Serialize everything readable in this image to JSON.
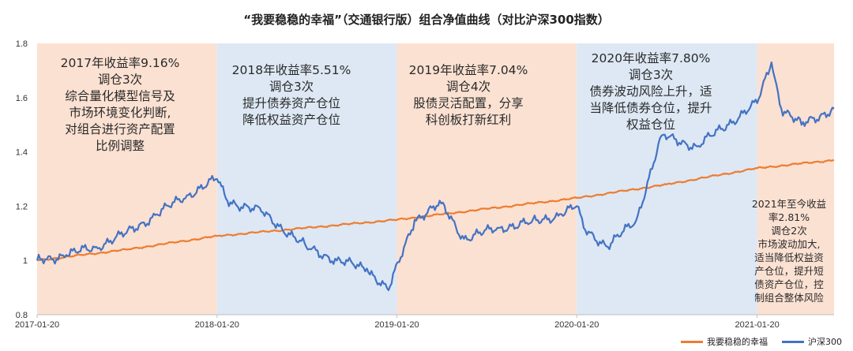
{
  "chart_data": {
    "type": "line",
    "title": "“我要稳稳的幸福”（交通银行版）组合净值曲线（对比沪深300指数）",
    "x_ticks": [
      "2017-01-20",
      "2018-01-20",
      "2019-01-20",
      "2020-01-20",
      "2021-01-20"
    ],
    "y_ticks": [
      0.8,
      1,
      1.2,
      1.4,
      1.6,
      1.8
    ],
    "ylim": [
      0.8,
      1.8
    ],
    "xlim": [
      "2017-01-20",
      "2021-06-25"
    ],
    "grid": false,
    "legend_position": "bottom-right",
    "colors": {
      "portfolio": "#ED7D31",
      "index": "#4472C4",
      "band_orange": "#FBE1D2",
      "band_blue": "#DDE8F4"
    },
    "series": [
      {
        "name": "我要稳稳的幸福",
        "x": [
          "2017-01-20",
          "2017-07-20",
          "2018-01-20",
          "2018-07-20",
          "2019-01-20",
          "2019-07-20",
          "2020-01-20",
          "2020-07-20",
          "2021-01-20",
          "2021-06-25"
        ],
        "values": [
          1.0,
          1.04,
          1.09,
          1.12,
          1.15,
          1.19,
          1.23,
          1.28,
          1.34,
          1.37
        ]
      },
      {
        "name": "沪深300",
        "x": [
          "2017-01-20",
          "2017-03-20",
          "2017-05-20",
          "2017-07-20",
          "2017-09-20",
          "2017-11-20",
          "2018-01-20",
          "2018-02-10",
          "2018-04-20",
          "2018-07-20",
          "2018-09-20",
          "2018-11-20",
          "2019-01-03",
          "2019-02-25",
          "2019-04-20",
          "2019-06-05",
          "2019-08-15",
          "2019-10-20",
          "2019-12-20",
          "2020-01-20",
          "2020-02-03",
          "2020-03-23",
          "2020-05-20",
          "2020-07-10",
          "2020-09-20",
          "2020-11-20",
          "2021-01-20",
          "2021-02-18",
          "2021-03-10",
          "2021-04-20",
          "2021-06-25"
        ],
        "values": [
          1.0,
          1.02,
          1.05,
          1.1,
          1.17,
          1.24,
          1.3,
          1.22,
          1.18,
          1.05,
          1.0,
          0.97,
          0.89,
          1.15,
          1.21,
          1.08,
          1.12,
          1.14,
          1.17,
          1.2,
          1.12,
          1.05,
          1.15,
          1.46,
          1.42,
          1.5,
          1.58,
          1.73,
          1.56,
          1.5,
          1.56
        ]
      }
    ],
    "annotations": [
      {
        "lines": [
          "2017年收益率9.16%",
          "调仓3次",
          "综合量化模型信号及",
          "市场环境变化判断,",
          "对组合进行资产配置",
          "比例调整"
        ]
      },
      {
        "lines": [
          "2018年收益率5.51%",
          "调仓3次",
          "提升债券资产仓位",
          "降低权益资产仓位"
        ]
      },
      {
        "lines": [
          "2019年收益率7.04%",
          "调仓4次",
          "股债灵活配置，分享",
          "科创板打新红利"
        ]
      },
      {
        "lines": [
          "2020年收益率7.80%",
          "调仓3次",
          "债券波动风险上升，适",
          "当降低债券仓位，提升",
          "权益仓位"
        ]
      },
      {
        "lines": [
          "2021年至今收益",
          "率2.81%",
          "调仓2次",
          "市场波动加大,",
          "适当降低权益资",
          "产仓位，提升短",
          "债资产仓位，控",
          "制组合整体风险"
        ]
      }
    ]
  }
}
